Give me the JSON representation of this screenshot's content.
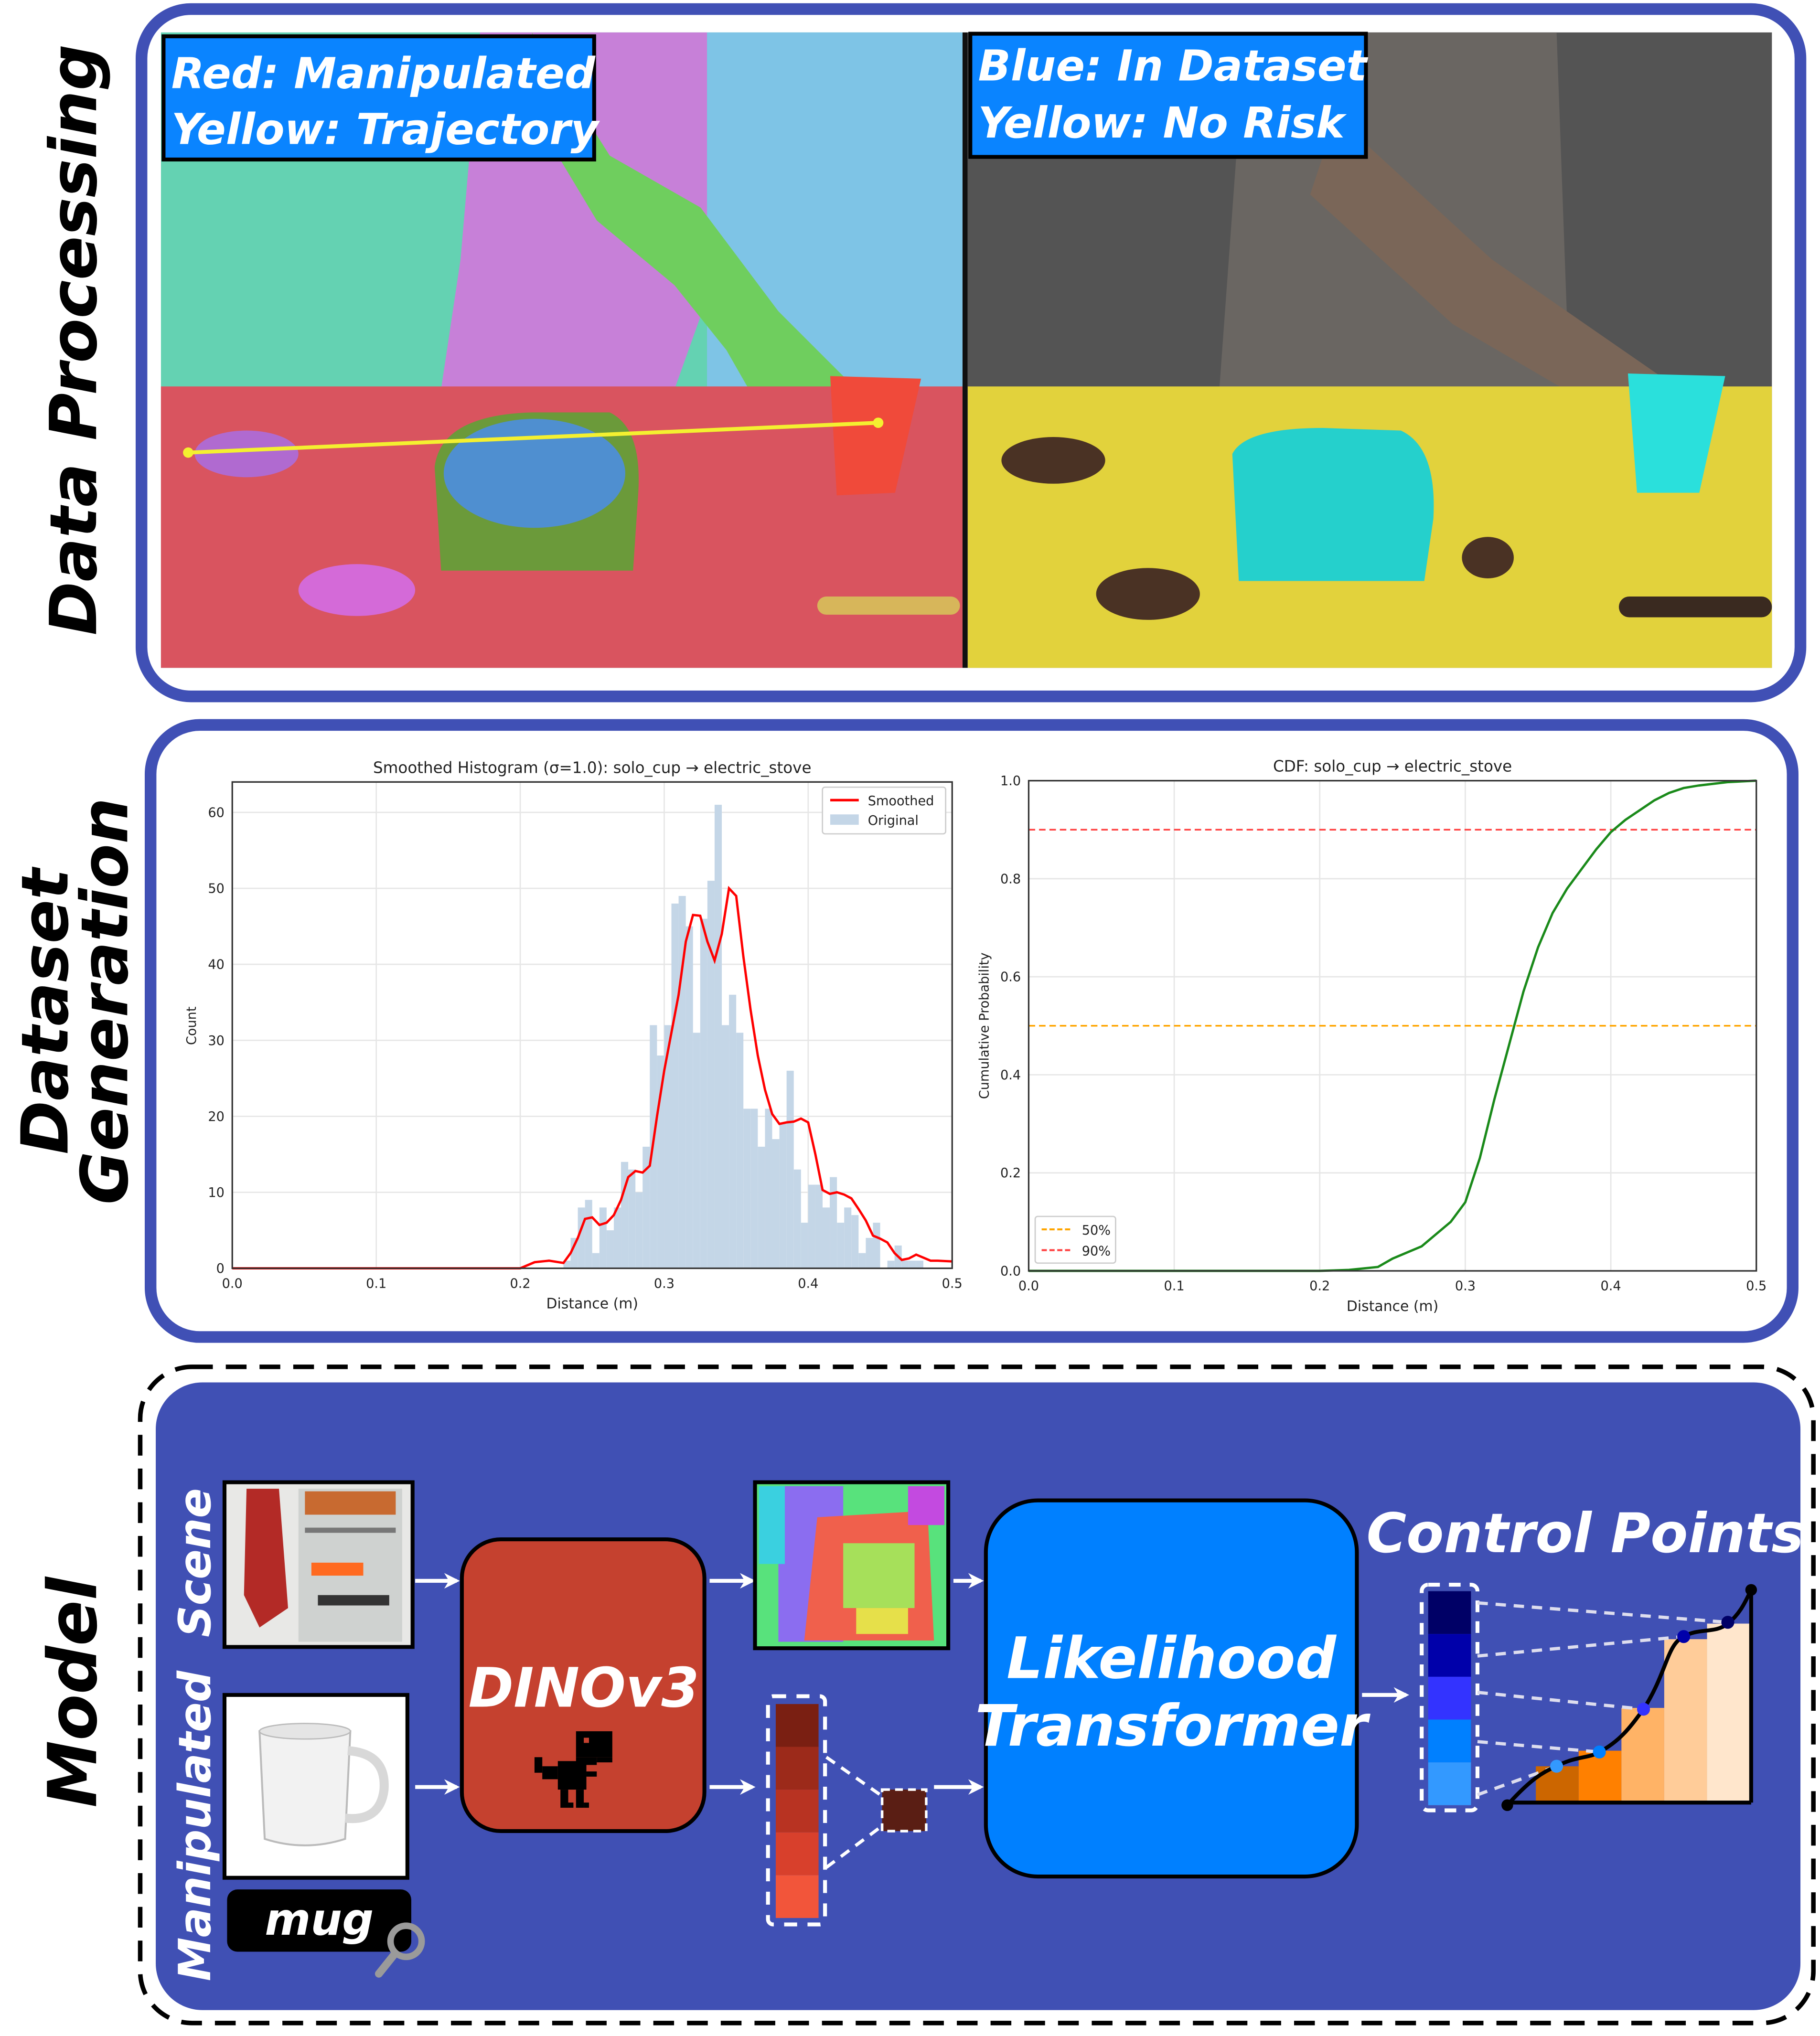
{
  "sections": {
    "data_processing": "Data Processing",
    "dataset_generation_line1": "Dataset",
    "dataset_generation_line2": "Generation",
    "model": "Model"
  },
  "data_processing": {
    "left_legend": {
      "line1": "Red: Manipulated",
      "line2": "Yellow: Trajectory"
    },
    "right_legend": {
      "line1": "Blue: In Dataset",
      "line2": "Yellow: No Risk"
    }
  },
  "model": {
    "scene_label": "Scene",
    "manipulated_label": "Manipulated",
    "query_text": "mug",
    "encoder_label": "DINOv3",
    "transformer_line1": "Likelihood",
    "transformer_line2": "Transformer",
    "output_label": "Control Points",
    "icons": [
      "arrow-right-icon",
      "dinosaur-icon",
      "magnifier-icon"
    ]
  },
  "colors": {
    "panel_border": "#4050b5",
    "legend_box": "#0a84ff",
    "encoder": "#c5412f",
    "transformer": "#0080ff",
    "model_bg": "#4050b4"
  },
  "chart_data": [
    {
      "type": "bar",
      "title": "Smoothed Histogram (σ=1.0): solo_cup → electric_stove",
      "xlabel": "Distance (m)",
      "ylabel": "Count",
      "xlim": [
        0,
        0.5
      ],
      "ylim": [
        0,
        64
      ],
      "xticks": [
        "0.0",
        "0.1",
        "0.2",
        "0.3",
        "0.4",
        "0.5"
      ],
      "yticks": [
        "0",
        "10",
        "20",
        "30",
        "40",
        "50",
        "60"
      ],
      "grid": true,
      "legend_position": "top-right",
      "bin_width": 0.005,
      "series": [
        {
          "name": "Original",
          "color": "#c4d6e7",
          "bins": [
            [
              0.23,
              1
            ],
            [
              0.235,
              4
            ],
            [
              0.24,
              8
            ],
            [
              0.245,
              9
            ],
            [
              0.25,
              2
            ],
            [
              0.255,
              8
            ],
            [
              0.26,
              5
            ],
            [
              0.265,
              8
            ],
            [
              0.27,
              14
            ],
            [
              0.275,
              13
            ],
            [
              0.28,
              10
            ],
            [
              0.285,
              16
            ],
            [
              0.29,
              32
            ],
            [
              0.295,
              28
            ],
            [
              0.3,
              32
            ],
            [
              0.305,
              48
            ],
            [
              0.31,
              49
            ],
            [
              0.315,
              45
            ],
            [
              0.32,
              31
            ],
            [
              0.325,
              46
            ],
            [
              0.33,
              51
            ],
            [
              0.335,
              61
            ],
            [
              0.34,
              32
            ],
            [
              0.345,
              36
            ],
            [
              0.35,
              31
            ],
            [
              0.355,
              21
            ],
            [
              0.36,
              21
            ],
            [
              0.365,
              16
            ],
            [
              0.37,
              21
            ],
            [
              0.375,
              17
            ],
            [
              0.38,
              19
            ],
            [
              0.385,
              26
            ],
            [
              0.39,
              13
            ],
            [
              0.395,
              6
            ],
            [
              0.4,
              11
            ],
            [
              0.405,
              11
            ],
            [
              0.41,
              8
            ],
            [
              0.415,
              12
            ],
            [
              0.42,
              6
            ],
            [
              0.425,
              8
            ],
            [
              0.43,
              7
            ],
            [
              0.435,
              2
            ],
            [
              0.44,
              4
            ],
            [
              0.445,
              6
            ],
            [
              0.45,
              0
            ],
            [
              0.455,
              1
            ],
            [
              0.46,
              3
            ],
            [
              0.465,
              1
            ],
            [
              0.47,
              1
            ],
            [
              0.475,
              1
            ]
          ]
        },
        {
          "name": "Smoothed",
          "color": "#ff0000",
          "points": [
            [
              0,
              0
            ],
            [
              0.2,
              0
            ],
            [
              0.21,
              0.8
            ],
            [
              0.22,
              1
            ],
            [
              0.23,
              0.7
            ],
            [
              0.235,
              2
            ],
            [
              0.24,
              4
            ],
            [
              0.245,
              6.5
            ],
            [
              0.25,
              6.7
            ],
            [
              0.255,
              5.7
            ],
            [
              0.26,
              6
            ],
            [
              0.265,
              7
            ],
            [
              0.27,
              9
            ],
            [
              0.275,
              12
            ],
            [
              0.28,
              12.8
            ],
            [
              0.285,
              12.6
            ],
            [
              0.29,
              13.5
            ],
            [
              0.295,
              20
            ],
            [
              0.3,
              26
            ],
            [
              0.305,
              31
            ],
            [
              0.31,
              36
            ],
            [
              0.315,
              43
            ],
            [
              0.32,
              46.5
            ],
            [
              0.325,
              46.4
            ],
            [
              0.33,
              43
            ],
            [
              0.335,
              40.5
            ],
            [
              0.34,
              44
            ],
            [
              0.345,
              50
            ],
            [
              0.35,
              49
            ],
            [
              0.355,
              41
            ],
            [
              0.36,
              34
            ],
            [
              0.365,
              28
            ],
            [
              0.37,
              23.5
            ],
            [
              0.375,
              20.3
            ],
            [
              0.38,
              19
            ],
            [
              0.385,
              19.2
            ],
            [
              0.39,
              19.3
            ],
            [
              0.395,
              19.7
            ],
            [
              0.4,
              19.2
            ],
            [
              0.405,
              15
            ],
            [
              0.41,
              10.3
            ],
            [
              0.415,
              9.8
            ],
            [
              0.42,
              10
            ],
            [
              0.425,
              9.7
            ],
            [
              0.43,
              9.2
            ],
            [
              0.435,
              7.8
            ],
            [
              0.44,
              6.3
            ],
            [
              0.445,
              4.3
            ],
            [
              0.45,
              3.9
            ],
            [
              0.455,
              3.4
            ],
            [
              0.46,
              2
            ],
            [
              0.465,
              1.1
            ],
            [
              0.47,
              1.3
            ],
            [
              0.475,
              1.8
            ],
            [
              0.48,
              1.4
            ],
            [
              0.485,
              1.0
            ],
            [
              0.49,
              1.0
            ],
            [
              0.5,
              0.9
            ]
          ]
        }
      ]
    },
    {
      "type": "line",
      "title": "CDF: solo_cup → electric_stove",
      "xlabel": "Distance (m)",
      "ylabel": "Cumulative Probability",
      "xlim": [
        0,
        0.5
      ],
      "ylim": [
        0,
        1
      ],
      "xticks": [
        "0.0",
        "0.1",
        "0.2",
        "0.3",
        "0.4",
        "0.5"
      ],
      "yticks": [
        "0.0",
        "0.2",
        "0.4",
        "0.6",
        "0.8",
        "1.0"
      ],
      "grid": true,
      "legend_position": "bottom-left",
      "series": [
        {
          "color": "#1a8a1a",
          "points": [
            [
              0,
              0
            ],
            [
              0.2,
              0
            ],
            [
              0.22,
              0.002
            ],
            [
              0.24,
              0.008
            ],
            [
              0.25,
              0.025
            ],
            [
              0.27,
              0.05
            ],
            [
              0.29,
              0.1
            ],
            [
              0.3,
              0.14
            ],
            [
              0.31,
              0.23
            ],
            [
              0.32,
              0.35
            ],
            [
              0.33,
              0.46
            ],
            [
              0.34,
              0.57
            ],
            [
              0.35,
              0.66
            ],
            [
              0.36,
              0.73
            ],
            [
              0.37,
              0.78
            ],
            [
              0.38,
              0.82
            ],
            [
              0.39,
              0.86
            ],
            [
              0.4,
              0.895
            ],
            [
              0.41,
              0.92
            ],
            [
              0.42,
              0.94
            ],
            [
              0.43,
              0.96
            ],
            [
              0.44,
              0.975
            ],
            [
              0.45,
              0.985
            ],
            [
              0.46,
              0.99
            ],
            [
              0.48,
              0.997
            ],
            [
              0.5,
              1.0
            ]
          ]
        }
      ],
      "reference_lines": [
        {
          "name": "50%",
          "y": 0.5,
          "color": "#ffa500"
        },
        {
          "name": "90%",
          "y": 0.9,
          "color": "#ff4040"
        }
      ]
    }
  ]
}
